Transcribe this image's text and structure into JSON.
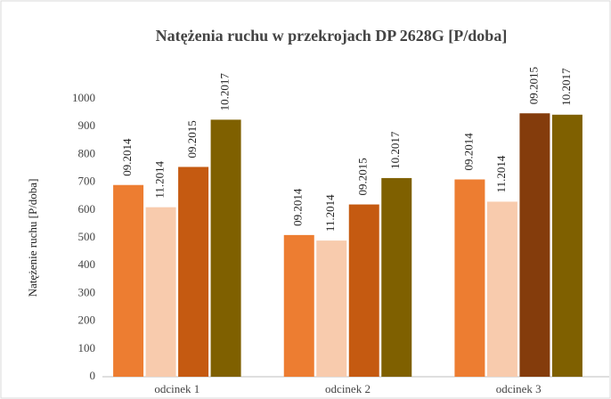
{
  "chart_data": {
    "type": "bar",
    "title": "Natężenia ruchu w przekrojach  DP 2628G [P/doba]",
    "y_label": "Natężenie ruchu [P/doba]",
    "categories": [
      "odcinek 1",
      "odcinek 2",
      "odcinek 3"
    ],
    "series": [
      {
        "name": "09.2014",
        "color": "#ed7d31",
        "values": [
          690,
          510,
          710
        ]
      },
      {
        "name": "11.2014",
        "color": "#f8cbad",
        "values": [
          610,
          490,
          630
        ]
      },
      {
        "name": "09.2015",
        "color": "#c55a11",
        "colors": [
          "#c55a11",
          "#c55a11",
          "#843c0c"
        ],
        "values": [
          755,
          620,
          948
        ]
      },
      {
        "name": "10.2017",
        "color": "#7f6000",
        "values": [
          925,
          715,
          943
        ]
      }
    ],
    "ylim": [
      0,
      1000
    ],
    "yticks": [
      0,
      100,
      200,
      300,
      400,
      500,
      600,
      700,
      800,
      900,
      1000
    ],
    "grid": false
  }
}
